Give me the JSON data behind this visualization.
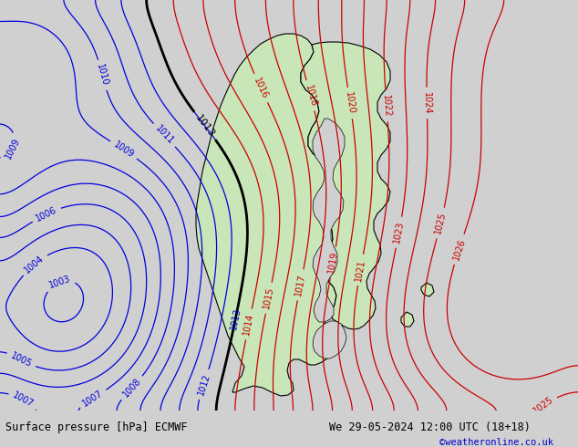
{
  "title_left": "Surface pressure [hPa] ECMWF",
  "title_right": "We 29-05-2024 12:00 UTC (18+18)",
  "copyright": "©weatheronline.co.uk",
  "bg_color": "#d0d0d0",
  "land_color": "#c8e6b8",
  "contour_color_blue": "#0000dd",
  "contour_color_red": "#cc0000",
  "contour_color_black": "#000000",
  "bottom_bar_color": "#b8b8b8",
  "bottom_text_color": "#000000",
  "copyright_color": "#0000cc",
  "figsize": [
    6.34,
    4.9
  ],
  "dpi": 100,
  "font_size_bottom": 8.5,
  "font_size_copyright": 7.5,
  "font_size_label": 7
}
